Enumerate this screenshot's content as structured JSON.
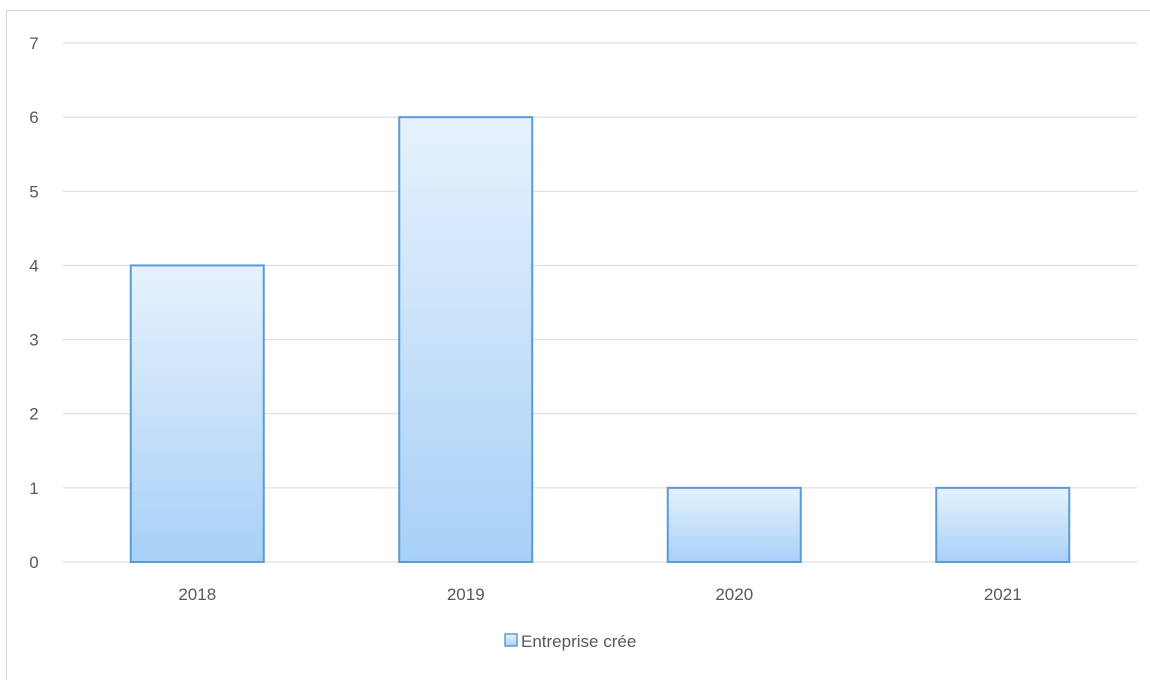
{
  "chart_data": {
    "type": "bar",
    "categories": [
      "2018",
      "2019",
      "2020",
      "2021"
    ],
    "series": [
      {
        "name": "Entreprise crée",
        "values": [
          4,
          6,
          1,
          1
        ]
      }
    ],
    "ylim": [
      0,
      7
    ],
    "yticks": [
      0,
      1,
      2,
      3,
      4,
      5,
      6,
      7
    ],
    "grid": true,
    "legend_position": "bottom",
    "colors": {
      "bar_top": "#e6f2fd",
      "bar_bottom": "#a8d0f7",
      "bar_border": "#5b9bd5",
      "grid": "#d9d9d9",
      "text": "#595959"
    }
  }
}
